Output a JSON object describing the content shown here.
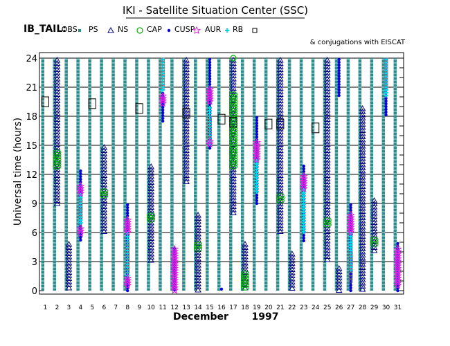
{
  "title": "IKI - Satellite Situation Center (SSC)",
  "legend_prefix": "IB_TAIL:",
  "legend_items": [
    {
      "label": "LOBS",
      "symbol": "square-small",
      "color": "#2e8b8b"
    },
    {
      "label": "PS",
      "symbol": "triangle",
      "color": "#000080"
    },
    {
      "label": "NS",
      "symbol": "circle-open",
      "color": "#00b000"
    },
    {
      "label": "CAP",
      "symbol": "dot",
      "color": "#0000e0"
    },
    {
      "label": "CUSP",
      "symbol": "star",
      "color": "#e020e0"
    },
    {
      "label": "AUR",
      "symbol": "plus",
      "color": "#00d8e8"
    },
    {
      "label": "RB",
      "symbol": "square-open",
      "color": "#000000"
    }
  ],
  "note": "& conjugations with EISCAT",
  "month_label": "December",
  "year_label": "1997",
  "colors": {
    "LOBS": "#2e8b8b",
    "PS": "#000080",
    "NS": "#00b000",
    "CAP": "#0000e0",
    "CUSP": "#e020e0",
    "AUR": "#00d8e8",
    "RB": "#000000",
    "EISCAT": "#000000"
  },
  "chart_data": {
    "type": "scatter",
    "xlabel": "",
    "ylabel": "Universal time (hours)",
    "x_ticks": [
      "1",
      "2",
      "3",
      "4",
      "5",
      "6",
      "7",
      "8",
      "9",
      "10",
      "11",
      "12",
      "13",
      "14",
      "15",
      "16",
      "17",
      "18",
      "19",
      "20",
      "21",
      "22",
      "23",
      "24",
      "25",
      "26",
      "27",
      "28",
      "29",
      "30",
      "31"
    ],
    "y_ticks": [
      0,
      3,
      6,
      9,
      12,
      15,
      18,
      21,
      24
    ],
    "ylim": [
      0,
      24
    ],
    "grid": "horizontal every 3 h",
    "days": [
      {
        "day": 1,
        "segments": [
          {
            "region": "LOBS",
            "from": 0,
            "to": 24
          }
        ],
        "eiscat": [
          19.5
        ]
      },
      {
        "day": 2,
        "segments": [
          {
            "region": "LOBS",
            "from": 0,
            "to": 24
          },
          {
            "region": "PS",
            "from": 9,
            "to": 24
          },
          {
            "region": "NS",
            "from": 12.5,
            "to": 14.5
          }
        ],
        "eiscat": []
      },
      {
        "day": 3,
        "segments": [
          {
            "region": "LOBS",
            "from": 0,
            "to": 24
          },
          {
            "region": "PS",
            "from": 0,
            "to": 5
          }
        ],
        "eiscat": []
      },
      {
        "day": 4,
        "segments": [
          {
            "region": "LOBS",
            "from": 0,
            "to": 24
          },
          {
            "region": "CAP",
            "from": 5,
            "to": 12.5
          },
          {
            "region": "CUSP",
            "from": 5.8,
            "to": 6.6
          },
          {
            "region": "CUSP",
            "from": 10,
            "to": 11
          },
          {
            "region": "AUR",
            "from": 7,
            "to": 10
          },
          {
            "region": "RB",
            "from": 7.5,
            "to": 9.5
          }
        ],
        "eiscat": []
      },
      {
        "day": 5,
        "segments": [
          {
            "region": "LOBS",
            "from": 0,
            "to": 24
          }
        ],
        "eiscat": [
          19.3
        ]
      },
      {
        "day": 6,
        "segments": [
          {
            "region": "LOBS",
            "from": 0,
            "to": 24
          },
          {
            "region": "PS",
            "from": 6,
            "to": 15
          },
          {
            "region": "NS",
            "from": 9.5,
            "to": 10.5
          }
        ],
        "eiscat": []
      },
      {
        "day": 7,
        "segments": [
          {
            "region": "LOBS",
            "from": 0,
            "to": 24
          }
        ],
        "eiscat": []
      },
      {
        "day": 8,
        "segments": [
          {
            "region": "LOBS",
            "from": 0,
            "to": 24
          },
          {
            "region": "CAP",
            "from": 0,
            "to": 9
          },
          {
            "region": "CUSP",
            "from": 0.5,
            "to": 1.5
          },
          {
            "region": "CUSP",
            "from": 6,
            "to": 7.5
          },
          {
            "region": "AUR",
            "from": 1.5,
            "to": 6
          },
          {
            "region": "RB",
            "from": 2,
            "to": 5
          }
        ],
        "eiscat": []
      },
      {
        "day": 9,
        "segments": [
          {
            "region": "LOBS",
            "from": 0,
            "to": 24
          }
        ],
        "eiscat": [
          18.8
        ]
      },
      {
        "day": 10,
        "segments": [
          {
            "region": "LOBS",
            "from": 0,
            "to": 24
          },
          {
            "region": "PS",
            "from": 3,
            "to": 13
          },
          {
            "region": "NS",
            "from": 7,
            "to": 8
          }
        ],
        "eiscat": []
      },
      {
        "day": 11,
        "segments": [
          {
            "region": "LOBS",
            "from": 0,
            "to": 24
          },
          {
            "region": "CAP",
            "from": 17.5,
            "to": 20.5
          },
          {
            "region": "CUSP",
            "from": 19.3,
            "to": 20.3
          },
          {
            "region": "AUR",
            "from": 20.5,
            "to": 24
          },
          {
            "region": "RB",
            "from": 21,
            "to": 24
          }
        ],
        "eiscat": []
      },
      {
        "day": 12,
        "segments": [
          {
            "region": "LOBS",
            "from": 0,
            "to": 24
          },
          {
            "region": "CAP",
            "from": 0,
            "to": 4.5
          },
          {
            "region": "CUSP",
            "from": 0,
            "to": 4.5
          }
        ],
        "eiscat": []
      },
      {
        "day": 13,
        "segments": [
          {
            "region": "LOBS",
            "from": 0,
            "to": 24
          },
          {
            "region": "PS",
            "from": 11,
            "to": 24
          }
        ],
        "eiscat": [
          18.3
        ]
      },
      {
        "day": 14,
        "segments": [
          {
            "region": "LOBS",
            "from": 0,
            "to": 24
          },
          {
            "region": "PS",
            "from": 0,
            "to": 8
          },
          {
            "region": "NS",
            "from": 4,
            "to": 5
          }
        ],
        "eiscat": []
      },
      {
        "day": 15,
        "segments": [
          {
            "region": "LOBS",
            "from": 0,
            "to": 24
          },
          {
            "region": "CAP",
            "from": 14.5,
            "to": 24
          },
          {
            "region": "CUSP",
            "from": 19.3,
            "to": 21
          },
          {
            "region": "CUSP",
            "from": 15,
            "to": 15.6
          },
          {
            "region": "AUR",
            "from": 15,
            "to": 19
          },
          {
            "region": "RB",
            "from": 15.5,
            "to": 18
          }
        ],
        "eiscat": []
      },
      {
        "day": 16,
        "segments": [
          {
            "region": "LOBS",
            "from": 0,
            "to": 24
          },
          {
            "region": "CAP",
            "from": 0,
            "to": 0.3
          }
        ],
        "eiscat": [
          17.7
        ]
      },
      {
        "day": 17,
        "segments": [
          {
            "region": "LOBS",
            "from": 0,
            "to": 24
          },
          {
            "region": "PS",
            "from": 8,
            "to": 24
          },
          {
            "region": "NS",
            "from": 12.5,
            "to": 20.5
          },
          {
            "region": "NS",
            "from": 24,
            "to": 24
          }
        ],
        "eiscat": [
          17.4
        ]
      },
      {
        "day": 18,
        "segments": [
          {
            "region": "LOBS",
            "from": 0,
            "to": 24
          },
          {
            "region": "PS",
            "from": 0,
            "to": 5
          },
          {
            "region": "NS",
            "from": 0,
            "to": 2
          }
        ],
        "eiscat": []
      },
      {
        "day": 19,
        "segments": [
          {
            "region": "LOBS",
            "from": 0,
            "to": 24
          },
          {
            "region": "CAP",
            "from": 9,
            "to": 18
          },
          {
            "region": "CUSP",
            "from": 13.5,
            "to": 15.5
          },
          {
            "region": "AUR",
            "from": 10,
            "to": 13.5
          }
        ],
        "eiscat": []
      },
      {
        "day": 20,
        "segments": [
          {
            "region": "LOBS",
            "from": 0,
            "to": 24
          }
        ],
        "eiscat": [
          17.2
        ]
      },
      {
        "day": 21,
        "segments": [
          {
            "region": "LOBS",
            "from": 0,
            "to": 24
          },
          {
            "region": "PS",
            "from": 6,
            "to": 24
          },
          {
            "region": "NS",
            "from": 9,
            "to": 10
          }
        ],
        "eiscat": [
          17.2
        ]
      },
      {
        "day": 22,
        "segments": [
          {
            "region": "LOBS",
            "from": 0,
            "to": 24
          },
          {
            "region": "PS",
            "from": 0,
            "to": 4
          }
        ],
        "eiscat": []
      },
      {
        "day": 23,
        "segments": [
          {
            "region": "LOBS",
            "from": 0,
            "to": 24
          },
          {
            "region": "CAP",
            "from": 5,
            "to": 13
          },
          {
            "region": "CUSP",
            "from": 10.5,
            "to": 12
          },
          {
            "region": "AUR",
            "from": 6,
            "to": 10.5
          }
        ],
        "eiscat": []
      },
      {
        "day": 24,
        "segments": [
          {
            "region": "LOBS",
            "from": 0,
            "to": 24
          }
        ],
        "eiscat": [
          16.8
        ]
      },
      {
        "day": 25,
        "segments": [
          {
            "region": "LOBS",
            "from": 0,
            "to": 24
          },
          {
            "region": "PS",
            "from": 3,
            "to": 24
          },
          {
            "region": "NS",
            "from": 6.5,
            "to": 7.5
          }
        ],
        "eiscat": []
      },
      {
        "day": 26,
        "segments": [
          {
            "region": "LOBS",
            "from": 0,
            "to": 24
          },
          {
            "region": "PS",
            "from": 0,
            "to": 2.5
          },
          {
            "region": "CAP",
            "from": 20,
            "to": 24
          }
        ],
        "eiscat": []
      },
      {
        "day": 27,
        "segments": [
          {
            "region": "LOBS",
            "from": 0,
            "to": 24
          },
          {
            "region": "CAP",
            "from": 0,
            "to": 9
          },
          {
            "region": "CUSP",
            "from": 6,
            "to": 8
          },
          {
            "region": "AUR",
            "from": 2,
            "to": 6
          },
          {
            "region": "RB",
            "from": 1,
            "to": 4
          }
        ],
        "eiscat": []
      },
      {
        "day": 28,
        "segments": [
          {
            "region": "LOBS",
            "from": 0,
            "to": 24
          },
          {
            "region": "PS",
            "from": 0,
            "to": 19
          }
        ],
        "eiscat": []
      },
      {
        "day": 29,
        "segments": [
          {
            "region": "LOBS",
            "from": 0,
            "to": 24
          },
          {
            "region": "PS",
            "from": 4,
            "to": 9.5
          },
          {
            "region": "NS",
            "from": 4.5,
            "to": 5.5
          }
        ],
        "eiscat": []
      },
      {
        "day": 30,
        "segments": [
          {
            "region": "LOBS",
            "from": 0,
            "to": 24
          },
          {
            "region": "CAP",
            "from": 18,
            "to": 24
          },
          {
            "region": "AUR",
            "from": 20,
            "to": 24
          },
          {
            "region": "RB",
            "from": 21,
            "to": 24
          }
        ],
        "eiscat": []
      },
      {
        "day": 31,
        "segments": [
          {
            "region": "LOBS",
            "from": 0,
            "to": 24
          },
          {
            "region": "CAP",
            "from": 0,
            "to": 5
          },
          {
            "region": "CUSP",
            "from": 0.5,
            "to": 4.5
          }
        ],
        "eiscat": []
      }
    ]
  }
}
